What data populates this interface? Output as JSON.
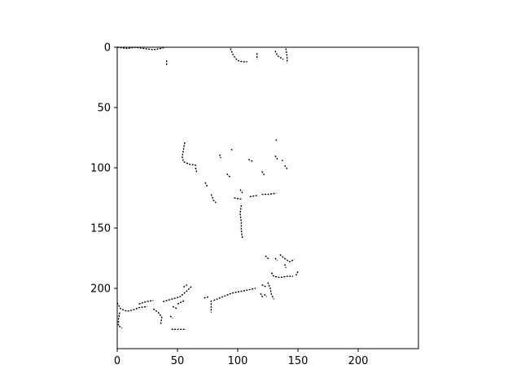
{
  "chart_data": {
    "type": "heatmap",
    "title": "",
    "xlabel": "",
    "ylabel": "",
    "xlim": [
      0,
      250
    ],
    "ylim": [
      250,
      0
    ],
    "xticks": [
      0,
      50,
      100,
      150,
      200
    ],
    "yticks": [
      0,
      50,
      100,
      150,
      200
    ],
    "grid": false,
    "colors": {
      "foreground": "#000000",
      "background": "#ffffff"
    },
    "strokes": [
      [
        [
          0,
          0
        ],
        [
          8,
          1
        ],
        [
          15,
          0
        ],
        [
          22,
          1
        ],
        [
          30,
          2
        ],
        [
          36,
          1
        ],
        [
          40,
          0
        ]
      ],
      [
        [
          41,
          11
        ],
        [
          41,
          15
        ]
      ],
      [
        [
          94,
          1
        ],
        [
          96,
          6
        ],
        [
          98,
          9
        ],
        [
          100,
          11
        ],
        [
          104,
          12
        ],
        [
          108,
          12
        ]
      ],
      [
        [
          116,
          5
        ],
        [
          116,
          10
        ]
      ],
      [
        [
          131,
          3
        ],
        [
          133,
          7
        ],
        [
          136,
          9
        ],
        [
          138,
          10
        ]
      ],
      [
        [
          140,
          1
        ],
        [
          141,
          8
        ],
        [
          141,
          13
        ]
      ],
      [
        [
          56,
          79
        ],
        [
          55,
          85
        ],
        [
          54,
          91
        ],
        [
          55,
          95
        ],
        [
          60,
          97
        ],
        [
          66,
          98
        ]
      ],
      [
        [
          65,
          100
        ],
        [
          66,
          104
        ]
      ],
      [
        [
          85,
          89
        ],
        [
          86,
          92
        ]
      ],
      [
        [
          95,
          85
        ]
      ],
      [
        [
          109,
          93
        ],
        [
          113,
          95
        ]
      ],
      [
        [
          131,
          90
        ],
        [
          133,
          93
        ]
      ],
      [
        [
          132,
          77
        ]
      ],
      [
        [
          137,
          94
        ]
      ],
      [
        [
          139,
          98
        ],
        [
          141,
          101
        ]
      ],
      [
        [
          91,
          105
        ],
        [
          94,
          108
        ]
      ],
      [
        [
          120,
          103
        ],
        [
          122,
          106
        ]
      ],
      [
        [
          73,
          112
        ],
        [
          75,
          116
        ]
      ],
      [
        [
          102,
          118
        ],
        [
          104,
          121
        ]
      ],
      [
        [
          78,
          122
        ],
        [
          80,
          127
        ],
        [
          82,
          129
        ]
      ],
      [
        [
          97,
          125
        ],
        [
          103,
          126
        ]
      ],
      [
        [
          110,
          124
        ],
        [
          116,
          123
        ]
      ],
      [
        [
          120,
          122
        ],
        [
          126,
          122
        ],
        [
          132,
          121
        ]
      ],
      [
        [
          103,
          131
        ],
        [
          102,
          138
        ],
        [
          103,
          145
        ],
        [
          103,
          152
        ],
        [
          104,
          159
        ]
      ],
      [
        [
          123,
          173
        ],
        [
          126,
          176
        ]
      ],
      [
        [
          131,
          175
        ],
        [
          133,
          177
        ]
      ],
      [
        [
          135,
          172
        ],
        [
          140,
          176
        ],
        [
          143,
          178
        ],
        [
          147,
          176
        ]
      ],
      [
        [
          139,
          180
        ],
        [
          140,
          183
        ]
      ],
      [
        [
          128,
          187
        ],
        [
          130,
          190
        ],
        [
          135,
          191
        ],
        [
          141,
          190
        ],
        [
          146,
          190
        ]
      ],
      [
        [
          150,
          186
        ],
        [
          148,
          190
        ]
      ],
      [
        [
          0,
          212
        ],
        [
          3,
          217
        ],
        [
          8,
          219
        ],
        [
          13,
          218
        ],
        [
          18,
          216
        ],
        [
          25,
          215
        ]
      ],
      [
        [
          2,
          220
        ],
        [
          1,
          226
        ],
        [
          1,
          231
        ],
        [
          4,
          233
        ]
      ],
      [
        [
          18,
          213
        ],
        [
          24,
          211
        ],
        [
          30,
          210
        ]
      ],
      [
        [
          30,
          217
        ],
        [
          34,
          220
        ],
        [
          37,
          224
        ],
        [
          36,
          230
        ]
      ],
      [
        [
          38,
          211
        ],
        [
          45,
          209
        ],
        [
          52,
          207
        ],
        [
          58,
          202
        ],
        [
          62,
          198
        ]
      ],
      [
        [
          50,
          213
        ],
        [
          56,
          210
        ]
      ],
      [
        [
          46,
          215
        ],
        [
          50,
          217
        ]
      ],
      [
        [
          44,
          223
        ],
        [
          46,
          225
        ]
      ],
      [
        [
          45,
          234
        ],
        [
          52,
          234
        ],
        [
          57,
          234
        ]
      ],
      [
        [
          55,
          199
        ],
        [
          58,
          197
        ]
      ],
      [
        [
          72,
          208
        ],
        [
          76,
          207
        ]
      ],
      [
        [
          78,
          210
        ],
        [
          78,
          215
        ],
        [
          78,
          220
        ]
      ],
      [
        [
          80,
          210
        ],
        [
          85,
          208
        ],
        [
          90,
          206
        ],
        [
          95,
          204
        ],
        [
          100,
          203
        ],
        [
          105,
          202
        ],
        [
          110,
          201
        ],
        [
          115,
          200
        ]
      ],
      [
        [
          120,
          197
        ],
        [
          124,
          199
        ]
      ],
      [
        [
          122,
          205
        ],
        [
          124,
          207
        ]
      ],
      [
        [
          125,
          195
        ],
        [
          127,
          200
        ],
        [
          128,
          205
        ],
        [
          130,
          209
        ]
      ],
      [
        [
          119,
          204
        ],
        [
          121,
          208
        ]
      ]
    ]
  }
}
